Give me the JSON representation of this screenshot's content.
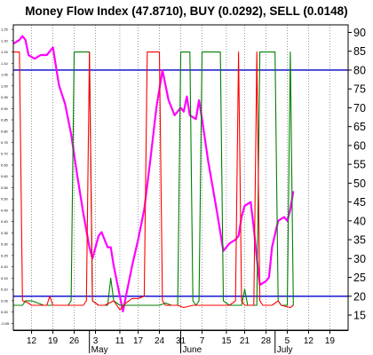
{
  "chart_data": {
    "type": "line",
    "title": "Money Flow Index (47.8710), BUY (0.0292), SELL (0.0148)",
    "right_axis": {
      "ticks": [
        15,
        20,
        25,
        30,
        35,
        40,
        45,
        50,
        55,
        60,
        65,
        70,
        75,
        80,
        85,
        90
      ],
      "ylim": [
        11,
        92
      ]
    },
    "left_axis": {
      "ticks": [
        "-0.05",
        "0.00",
        "0.05",
        "0.10",
        "0.15",
        "0.20",
        "0.25",
        "0.30",
        "0.35",
        "0.40",
        "0.45",
        "0.50",
        "0.55",
        "0.60",
        "0.65",
        "0.70",
        "0.75",
        "0.80",
        "0.85",
        "0.90",
        "0.95",
        "1.00",
        "1.05",
        "1.10",
        "1.15",
        "1.20",
        "1.25"
      ],
      "ylim": [
        -0.08,
        1.27
      ]
    },
    "x_ticks": [
      {
        "label": "12",
        "x": 12
      },
      {
        "label": "19",
        "x": 19
      },
      {
        "label": "26",
        "x": 26
      },
      {
        "label": "3",
        "x": 33
      },
      {
        "label": "11",
        "x": 41
      },
      {
        "label": "17",
        "x": 47
      },
      {
        "label": "24",
        "x": 54
      },
      {
        "label": "31",
        "x": 61
      },
      {
        "label": "7",
        "x": 68
      },
      {
        "label": "15",
        "x": 76
      },
      {
        "label": "21",
        "x": 82
      },
      {
        "label": "28",
        "x": 89
      },
      {
        "label": "5",
        "x": 96
      },
      {
        "label": "12",
        "x": 103
      },
      {
        "label": "19",
        "x": 110
      }
    ],
    "months": [
      {
        "label": "May",
        "x": 31
      },
      {
        "label": "June",
        "x": 61
      },
      {
        "label": "July",
        "x": 92
      }
    ],
    "xlim": [
      6,
      116
    ],
    "reference_lines": [
      80,
      20
    ],
    "grid": "vertical-dotted",
    "series": [
      {
        "name": "Money Flow Index",
        "axis": "right",
        "color": "#ff00ff",
        "points": [
          [
            6,
            87
          ],
          [
            8,
            88
          ],
          [
            9,
            89
          ],
          [
            10,
            88
          ],
          [
            11,
            84
          ],
          [
            13,
            83
          ],
          [
            15,
            84
          ],
          [
            17,
            84
          ],
          [
            19,
            86
          ],
          [
            21,
            76
          ],
          [
            23,
            71
          ],
          [
            25,
            63
          ],
          [
            27,
            52
          ],
          [
            29,
            42
          ],
          [
            31,
            33
          ],
          [
            32,
            30
          ],
          [
            34,
            36
          ],
          [
            35,
            37
          ],
          [
            37,
            33
          ],
          [
            38,
            33
          ],
          [
            39,
            28
          ],
          [
            41,
            20
          ],
          [
            42,
            16
          ],
          [
            43,
            20
          ],
          [
            45,
            28
          ],
          [
            47,
            35
          ],
          [
            49,
            43
          ],
          [
            51,
            56
          ],
          [
            53,
            70
          ],
          [
            55,
            80
          ],
          [
            57,
            72
          ],
          [
            59,
            68
          ],
          [
            61,
            70
          ],
          [
            62,
            69
          ],
          [
            63,
            73
          ],
          [
            64,
            68
          ],
          [
            66,
            67
          ],
          [
            67,
            72
          ],
          [
            68,
            67
          ],
          [
            70,
            56
          ],
          [
            73,
            42
          ],
          [
            75,
            32
          ],
          [
            77,
            34
          ],
          [
            79,
            35
          ],
          [
            80,
            36
          ],
          [
            81,
            41
          ],
          [
            82,
            44
          ],
          [
            84,
            45
          ],
          [
            85,
            38
          ],
          [
            86,
            30
          ],
          [
            87,
            23
          ],
          [
            89,
            24
          ],
          [
            90,
            25
          ],
          [
            91,
            33
          ],
          [
            93,
            40
          ],
          [
            95,
            41
          ],
          [
            96,
            40
          ],
          [
            97,
            43
          ],
          [
            98,
            47.87
          ]
        ]
      },
      {
        "name": "BUY",
        "axis": "left",
        "color": "#008000",
        "points": [
          [
            6,
            0.03
          ],
          [
            9,
            0.03
          ],
          [
            10,
            0.05
          ],
          [
            12,
            0.05
          ],
          [
            14,
            0.04
          ],
          [
            16,
            0.03
          ],
          [
            18,
            0.03
          ],
          [
            20,
            0.03
          ],
          [
            22,
            0.03
          ],
          [
            24,
            0.03
          ],
          [
            25,
            0.05
          ],
          [
            26,
            1.15
          ],
          [
            31,
            1.15
          ],
          [
            32,
            0.05
          ],
          [
            34,
            0.03
          ],
          [
            37,
            0.03
          ],
          [
            38,
            0.15
          ],
          [
            39,
            0.05
          ],
          [
            41,
            0.03
          ],
          [
            44,
            0.03
          ],
          [
            47,
            0.03
          ],
          [
            50,
            0.03
          ],
          [
            54,
            0.03
          ],
          [
            56,
            0.04
          ],
          [
            58,
            0.03
          ],
          [
            60,
            0.03
          ],
          [
            61,
            1.15
          ],
          [
            64,
            1.15
          ],
          [
            65,
            0.05
          ],
          [
            66,
            0.03
          ],
          [
            67,
            0.05
          ],
          [
            68,
            1.15
          ],
          [
            74,
            1.15
          ],
          [
            75,
            0.05
          ],
          [
            77,
            0.03
          ],
          [
            81,
            0.03
          ],
          [
            82,
            0.1
          ],
          [
            83,
            0.03
          ],
          [
            86,
            0.03
          ],
          [
            87,
            1.15
          ],
          [
            92,
            1.15
          ],
          [
            93,
            0.05
          ],
          [
            94,
            0.03
          ],
          [
            96,
            0.03
          ],
          [
            97,
            1.15
          ],
          [
            98,
            0.03
          ]
        ]
      },
      {
        "name": "SELL",
        "axis": "left",
        "color": "#ff0000",
        "points": [
          [
            6,
            1.15
          ],
          [
            8,
            1.15
          ],
          [
            9,
            0.05
          ],
          [
            11,
            0.04
          ],
          [
            12,
            0.03
          ],
          [
            17,
            0.03
          ],
          [
            18,
            0.07
          ],
          [
            19,
            0.03
          ],
          [
            21,
            0.03
          ],
          [
            26,
            0.03
          ],
          [
            29,
            0.03
          ],
          [
            30,
            0.05
          ],
          [
            31,
            1.15
          ],
          [
            32,
            0.05
          ],
          [
            34,
            0.03
          ],
          [
            36,
            0.03
          ],
          [
            39,
            0.05
          ],
          [
            40,
            0.03
          ],
          [
            41,
            0.01
          ],
          [
            43,
            0.04
          ],
          [
            45,
            0.06
          ],
          [
            47,
            0.06
          ],
          [
            49,
            0.07
          ],
          [
            50,
            1.15
          ],
          [
            54,
            1.15
          ],
          [
            55,
            0.05
          ],
          [
            56,
            0.03
          ],
          [
            60,
            0.03
          ],
          [
            62,
            0.02
          ],
          [
            65,
            0.03
          ],
          [
            69,
            0.03
          ],
          [
            73,
            0.03
          ],
          [
            77,
            0.03
          ],
          [
            79,
            0.05
          ],
          [
            80,
            1.15
          ],
          [
            81,
            0.05
          ],
          [
            82,
            0.03
          ],
          [
            85,
            0.03
          ],
          [
            86,
            1.15
          ],
          [
            87,
            0.05
          ],
          [
            88,
            0.03
          ],
          [
            91,
            0.03
          ],
          [
            93,
            0.05
          ],
          [
            94,
            0.03
          ],
          [
            97,
            0.02
          ],
          [
            98,
            0.03
          ]
        ]
      }
    ]
  }
}
